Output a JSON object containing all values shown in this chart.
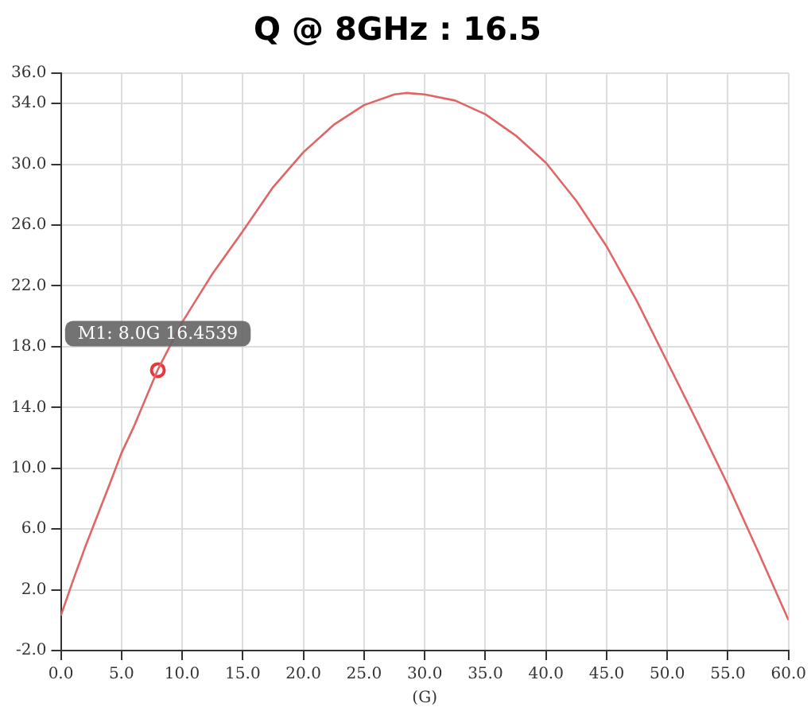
{
  "chart_data": {
    "type": "line",
    "title": "Q @ 8GHz : 16.5",
    "xlabel": "(G)",
    "series": [
      {
        "type": "line",
        "color": "#e06666",
        "x": [
          0,
          1,
          2,
          4,
          5,
          6,
          8,
          10,
          12.5,
          15,
          17.5,
          20,
          22.5,
          25,
          27.5,
          28.5,
          30,
          32.5,
          35,
          37.5,
          40,
          42.5,
          45,
          47.5,
          50,
          52.5,
          55,
          57.5,
          60
        ],
        "values": [
          0.3,
          2.6,
          4.8,
          8.9,
          11,
          12.7,
          16.5,
          19.6,
          22.8,
          25.6,
          28.5,
          30.8,
          32.6,
          33.9,
          34.6,
          34.7,
          34.6,
          34.2,
          33.3,
          31.9,
          30.1,
          27.6,
          24.6,
          21,
          17,
          13,
          8.9,
          4.5,
          0
        ]
      },
      {
        "type": "scatter",
        "color": "#e8383d",
        "x": [
          8
        ],
        "values": [
          16.4539
        ]
      }
    ],
    "annotations": [
      {
        "text": "M1: 8.0G 16.4539",
        "x": 8,
        "y": 16.4539
      }
    ],
    "xlim": [
      0,
      60
    ],
    "ylim": [
      -2,
      36
    ],
    "xticks": [
      {
        "value": 0,
        "label": "0.0"
      },
      {
        "value": 5,
        "label": "5.0"
      },
      {
        "value": 10,
        "label": "10.0"
      },
      {
        "value": 15,
        "label": "15.0"
      },
      {
        "value": 20,
        "label": "20.0"
      },
      {
        "value": 25,
        "label": "25.0"
      },
      {
        "value": 30,
        "label": "30.0"
      },
      {
        "value": 35,
        "label": "35.0"
      },
      {
        "value": 40,
        "label": "40.0"
      },
      {
        "value": 45,
        "label": "45.0"
      },
      {
        "value": 50,
        "label": "50.0"
      },
      {
        "value": 55,
        "label": "55.0"
      },
      {
        "value": 60,
        "label": "60.0"
      }
    ],
    "yticks": [
      {
        "value": -2,
        "label": "-2.0"
      },
      {
        "value": 2,
        "label": "2.0"
      },
      {
        "value": 6,
        "label": "6.0"
      },
      {
        "value": 10,
        "label": "10.0"
      },
      {
        "value": 14,
        "label": "14.0"
      },
      {
        "value": 18,
        "label": "18.0"
      },
      {
        "value": 22,
        "label": "22.0"
      },
      {
        "value": 26,
        "label": "26.0"
      },
      {
        "value": 30,
        "label": "30.0"
      },
      {
        "value": 34,
        "label": "34.0"
      },
      {
        "value": 36,
        "label": "36.0"
      }
    ],
    "grid": true,
    "legend": false
  }
}
